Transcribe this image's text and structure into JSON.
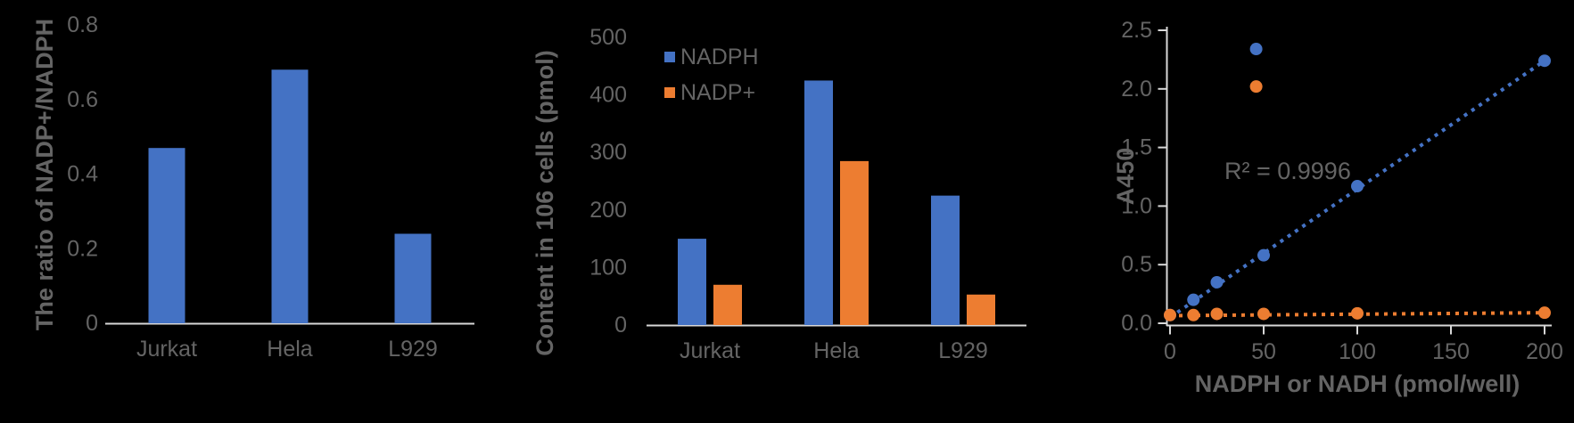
{
  "page": {
    "background": "#000000"
  },
  "colors": {
    "blue": "#4472C4",
    "orange": "#ED7D31",
    "text_gray": "#646464",
    "axis_gray": "#d8d8d8"
  },
  "chart_data": [
    {
      "type": "bar",
      "title": "",
      "ylabel": "The ratio of NADP+/NADPH",
      "xlabel": "",
      "categories": [
        "Jurkat",
        "Hela",
        "L929"
      ],
      "values": [
        0.47,
        0.68,
        0.24
      ],
      "ylim": [
        0,
        0.8
      ],
      "ytick_values": [
        0,
        0.2,
        0.4,
        0.6,
        0.8
      ],
      "ytick_labels": [
        "0",
        "0.2",
        "0.4",
        "0.6",
        "0.8"
      ],
      "grid": false,
      "bar_color": "#4472C4"
    },
    {
      "type": "bar",
      "title": "",
      "ylabel": "Content in 106 cells (pmol)",
      "xlabel": "",
      "categories": [
        "Jurkat",
        "Hela",
        "L929"
      ],
      "series": [
        {
          "name": "NADPH",
          "color": "#4472C4",
          "values": [
            150,
            425,
            225
          ]
        },
        {
          "name": "NADP+",
          "color": "#ED7D31",
          "values": [
            70,
            285,
            53
          ]
        }
      ],
      "ylim": [
        0,
        500
      ],
      "ytick_values": [
        0,
        100,
        200,
        300,
        400,
        500
      ],
      "ytick_labels": [
        "0",
        "100",
        "200",
        "300",
        "400",
        "500"
      ],
      "grid": false,
      "legend_position": "top-left-inside"
    },
    {
      "type": "scatter",
      "title": "",
      "ylabel": "A450",
      "xlabel": "NADPH or NADH (pmol/well)",
      "xlim": [
        0,
        200
      ],
      "ylim": [
        0,
        2.5
      ],
      "xtick_values": [
        0,
        50,
        100,
        150,
        200
      ],
      "xtick_labels": [
        "0",
        "50",
        "100",
        "150",
        "200"
      ],
      "ytick_values": [
        0,
        0.5,
        1.0,
        1.5,
        2.0,
        2.5
      ],
      "ytick_labels": [
        "0.0",
        "0.5",
        "1.0",
        "1.5",
        "2.0",
        "2.5"
      ],
      "annotation": "R² = 0.9996",
      "grid": false,
      "series": [
        {
          "name": "blue-series",
          "color": "#4472C4",
          "points": [
            [
              0,
              0.07
            ],
            [
              12.5,
              0.2
            ],
            [
              25,
              0.35
            ],
            [
              50,
              0.58
            ],
            [
              100,
              1.17
            ],
            [
              200,
              2.24
            ]
          ],
          "trendline": [
            [
              0,
              0.05
            ],
            [
              200,
              2.24
            ]
          ]
        },
        {
          "name": "orange-series",
          "color": "#ED7D31",
          "points": [
            [
              0,
              0.07
            ],
            [
              12.5,
              0.07
            ],
            [
              25,
              0.08
            ],
            [
              50,
              0.08
            ],
            [
              100,
              0.085
            ],
            [
              200,
              0.09
            ]
          ],
          "trendline": [
            [
              0,
              0.065
            ],
            [
              200,
              0.09
            ]
          ]
        }
      ],
      "legend_markers": [
        {
          "color": "#4472C4",
          "x": 46,
          "y": 2.34
        },
        {
          "color": "#ED7D31",
          "x": 46,
          "y": 2.02
        }
      ]
    }
  ]
}
